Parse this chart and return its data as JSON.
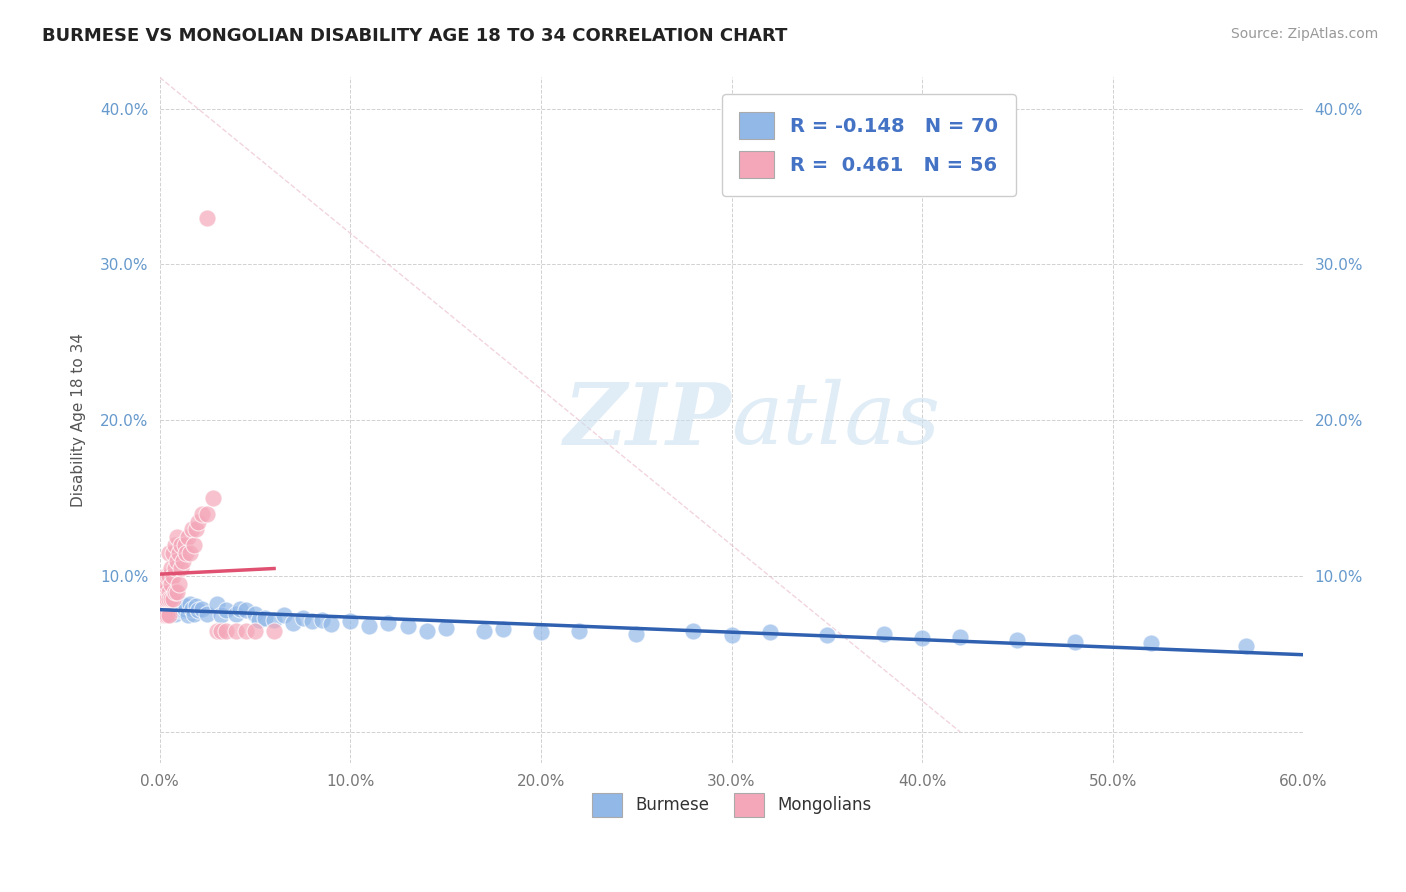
{
  "title": "BURMESE VS MONGOLIAN DISABILITY AGE 18 TO 34 CORRELATION CHART",
  "source_text": "Source: ZipAtlas.com",
  "ylabel": "Disability Age 18 to 34",
  "xlim": [
    0.0,
    0.6
  ],
  "ylim": [
    -0.02,
    0.42
  ],
  "xticks": [
    0.0,
    0.1,
    0.2,
    0.3,
    0.4,
    0.5,
    0.6
  ],
  "xticklabels": [
    "0.0%",
    "10.0%",
    "20.0%",
    "30.0%",
    "40.0%",
    "50.0%",
    "60.0%"
  ],
  "yticks": [
    0.0,
    0.1,
    0.2,
    0.3,
    0.4
  ],
  "yticklabels": [
    "",
    "10.0%",
    "20.0%",
    "30.0%",
    "40.0%"
  ],
  "right_ytick_labels": [
    "",
    "10.0%",
    "20.0%",
    "30.0%",
    "40.0%"
  ],
  "burmese_color": "#92b8e8",
  "mongolian_color": "#f4a7b9",
  "burmese_line_color": "#3060b0",
  "mongolian_line_color": "#e05070",
  "burmese_R": -0.148,
  "burmese_N": 70,
  "mongolian_R": 0.461,
  "mongolian_N": 56,
  "legend_R_N_color": "#4472c4",
  "watermark": "ZIPatlas",
  "background_color": "#ffffff",
  "grid_color": "#cccccc",
  "burmese_x": [
    0.001,
    0.001,
    0.002,
    0.002,
    0.003,
    0.003,
    0.003,
    0.004,
    0.004,
    0.005,
    0.005,
    0.005,
    0.006,
    0.007,
    0.007,
    0.008,
    0.008,
    0.009,
    0.01,
    0.01,
    0.011,
    0.012,
    0.013,
    0.014,
    0.015,
    0.016,
    0.017,
    0.018,
    0.019,
    0.02,
    0.022,
    0.025,
    0.03,
    0.032,
    0.035,
    0.04,
    0.042,
    0.045,
    0.05,
    0.052,
    0.055,
    0.06,
    0.065,
    0.07,
    0.075,
    0.08,
    0.085,
    0.09,
    0.1,
    0.11,
    0.12,
    0.13,
    0.14,
    0.15,
    0.17,
    0.18,
    0.2,
    0.22,
    0.25,
    0.28,
    0.3,
    0.32,
    0.35,
    0.38,
    0.4,
    0.42,
    0.45,
    0.48,
    0.52,
    0.57
  ],
  "burmese_y": [
    0.08,
    0.085,
    0.075,
    0.09,
    0.08,
    0.075,
    0.085,
    0.08,
    0.075,
    0.08,
    0.085,
    0.075,
    0.082,
    0.078,
    0.08,
    0.076,
    0.082,
    0.079,
    0.08,
    0.078,
    0.082,
    0.078,
    0.079,
    0.081,
    0.075,
    0.082,
    0.079,
    0.076,
    0.081,
    0.078,
    0.079,
    0.076,
    0.082,
    0.075,
    0.078,
    0.076,
    0.079,
    0.078,
    0.076,
    0.072,
    0.073,
    0.072,
    0.075,
    0.07,
    0.073,
    0.071,
    0.072,
    0.069,
    0.071,
    0.068,
    0.07,
    0.068,
    0.065,
    0.067,
    0.065,
    0.066,
    0.064,
    0.065,
    0.063,
    0.065,
    0.062,
    0.064,
    0.062,
    0.063,
    0.06,
    0.061,
    0.059,
    0.058,
    0.057,
    0.055
  ],
  "mongolian_x": [
    0.001,
    0.001,
    0.001,
    0.002,
    0.002,
    0.002,
    0.002,
    0.003,
    0.003,
    0.003,
    0.003,
    0.004,
    0.004,
    0.004,
    0.004,
    0.005,
    0.005,
    0.005,
    0.005,
    0.005,
    0.006,
    0.006,
    0.006,
    0.007,
    0.007,
    0.007,
    0.008,
    0.008,
    0.008,
    0.009,
    0.009,
    0.009,
    0.01,
    0.01,
    0.011,
    0.011,
    0.012,
    0.013,
    0.014,
    0.015,
    0.016,
    0.017,
    0.018,
    0.019,
    0.02,
    0.022,
    0.025,
    0.028,
    0.03,
    0.032,
    0.035,
    0.04,
    0.045,
    0.05,
    0.06,
    0.025
  ],
  "mongolian_y": [
    0.08,
    0.085,
    0.075,
    0.09,
    0.085,
    0.08,
    0.075,
    0.09,
    0.085,
    0.1,
    0.075,
    0.095,
    0.085,
    0.1,
    0.075,
    0.09,
    0.1,
    0.085,
    0.115,
    0.075,
    0.095,
    0.105,
    0.085,
    0.1,
    0.115,
    0.085,
    0.105,
    0.12,
    0.09,
    0.11,
    0.125,
    0.09,
    0.115,
    0.095,
    0.12,
    0.105,
    0.11,
    0.12,
    0.115,
    0.125,
    0.115,
    0.13,
    0.12,
    0.13,
    0.135,
    0.14,
    0.14,
    0.15,
    0.065,
    0.065,
    0.065,
    0.065,
    0.065,
    0.065,
    0.065,
    0.33
  ]
}
